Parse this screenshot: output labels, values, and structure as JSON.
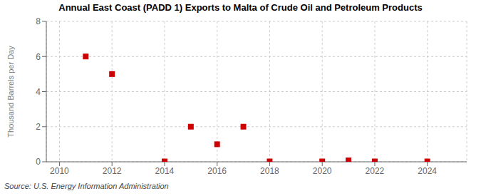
{
  "chart_data": {
    "type": "scatter",
    "title": "Annual East Coast (PADD 1) Exports to Malta of Crude Oil and Petroleum Products",
    "ylabel": "Thousand Barrels per Day",
    "source": "Source: U.S. Energy Information Administration",
    "x": [
      2011,
      2012,
      2014,
      2015,
      2016,
      2017,
      2018,
      2020,
      2021,
      2022,
      2024
    ],
    "values": [
      6.0,
      5.0,
      0.02,
      2.0,
      1.0,
      2.0,
      0.02,
      0.02,
      0.08,
      0.02,
      0.02
    ],
    "color": "#cc0000",
    "marker": "square",
    "xlim": [
      2009.5,
      2025.5
    ],
    "ylim": [
      0,
      8
    ],
    "xticks": [
      2010,
      2012,
      2014,
      2016,
      2018,
      2020,
      2022,
      2024
    ],
    "yticks": [
      0,
      2,
      4,
      6,
      8
    ],
    "grid": true
  }
}
